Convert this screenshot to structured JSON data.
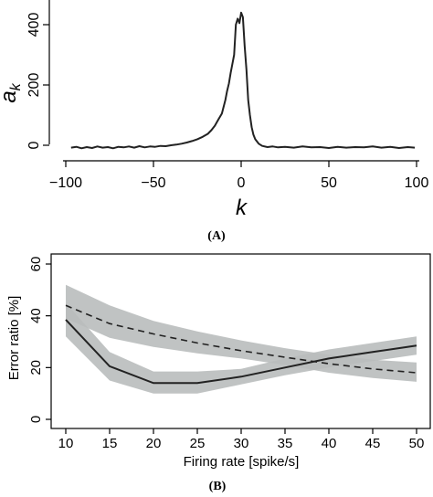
{
  "chart_data": [
    {
      "type": "line",
      "panel_label": "(A)",
      "xlabel": "k",
      "ylabel": "a",
      "ylabel_sub": "k",
      "xlim": [
        -100,
        100
      ],
      "ylim": [
        0,
        450
      ],
      "x_ticks": [
        -100,
        -50,
        0,
        50,
        100
      ],
      "x_tick_labels": [
        "−100",
        "−50",
        "0",
        "50",
        "100"
      ],
      "y_ticks": [
        0,
        200,
        400
      ],
      "y_tick_labels": [
        "0",
        "200",
        "400"
      ],
      "series": [
        {
          "color": "#222222",
          "x": [
            -97,
            -94,
            -91,
            -88,
            -85,
            -82,
            -79,
            -76,
            -73,
            -70,
            -67,
            -64,
            -61,
            -58,
            -55,
            -52,
            -49,
            -46,
            -43,
            -40,
            -37,
            -34,
            -31,
            -28,
            -25,
            -22,
            -19,
            -17,
            -15,
            -13,
            -11,
            -9,
            -8,
            -7,
            -6,
            -5,
            -4,
            -3,
            -2,
            -1,
            0,
            1,
            2,
            3,
            4,
            5,
            6,
            7,
            8,
            10,
            12,
            15,
            18,
            21,
            25,
            30,
            35,
            40,
            45,
            50,
            55,
            60,
            65,
            70,
            75,
            80,
            85,
            90,
            95,
            99
          ],
          "y": [
            -8,
            -5,
            -10,
            -6,
            -9,
            -4,
            -8,
            -6,
            -10,
            -5,
            -7,
            -4,
            -8,
            -3,
            -7,
            -4,
            -5,
            -2,
            -3,
            0,
            2,
            5,
            9,
            14,
            20,
            28,
            38,
            50,
            65,
            85,
            105,
            150,
            180,
            205,
            240,
            270,
            300,
            400,
            420,
            405,
            440,
            425,
            330,
            250,
            150,
            100,
            60,
            35,
            20,
            5,
            -2,
            -6,
            -4,
            -7,
            -5,
            -8,
            -4,
            -7,
            -6,
            -9,
            -5,
            -8,
            -6,
            -7,
            -4,
            -8,
            -5,
            -9,
            -6,
            -8
          ]
        }
      ]
    },
    {
      "type": "line",
      "panel_label": "(B)",
      "xlabel": "Firing rate [spike/s]",
      "ylabel": "Error ratio [%]",
      "xlim": [
        10,
        50
      ],
      "ylim": [
        0,
        60
      ],
      "x_ticks": [
        10,
        15,
        20,
        25,
        30,
        35,
        40,
        45,
        50
      ],
      "x_tick_labels": [
        "10",
        "15",
        "20",
        "25",
        "30",
        "35",
        "40",
        "45",
        "50"
      ],
      "y_ticks": [
        0,
        20,
        40,
        60
      ],
      "y_tick_labels": [
        "0",
        "20",
        "40",
        "60"
      ],
      "band_color": "#b9bdbc",
      "series": [
        {
          "line_style": "solid",
          "color": "#222222",
          "x": [
            10,
            15,
            20,
            25,
            30,
            35,
            40,
            45,
            50
          ],
          "y": [
            38.5,
            20.5,
            14,
            14,
            16.5,
            20,
            23.5,
            26,
            28.5
          ],
          "lower": [
            32,
            15,
            10,
            10,
            13.5,
            17,
            20,
            22.5,
            25
          ],
          "upper": [
            45,
            26,
            18.5,
            18.5,
            19.5,
            23.5,
            27,
            29.5,
            32
          ]
        },
        {
          "line_style": "dashed",
          "color": "#222222",
          "x": [
            10,
            15,
            20,
            25,
            30,
            35,
            40,
            45,
            50
          ],
          "y": [
            44,
            37,
            33,
            29.5,
            26.5,
            24,
            21.5,
            19.5,
            18
          ],
          "lower": [
            39,
            31.5,
            28,
            25.5,
            23.5,
            21,
            18,
            16,
            14.5
          ],
          "upper": [
            52,
            44,
            38,
            34,
            30.5,
            27.5,
            25,
            23,
            22
          ]
        }
      ]
    }
  ]
}
